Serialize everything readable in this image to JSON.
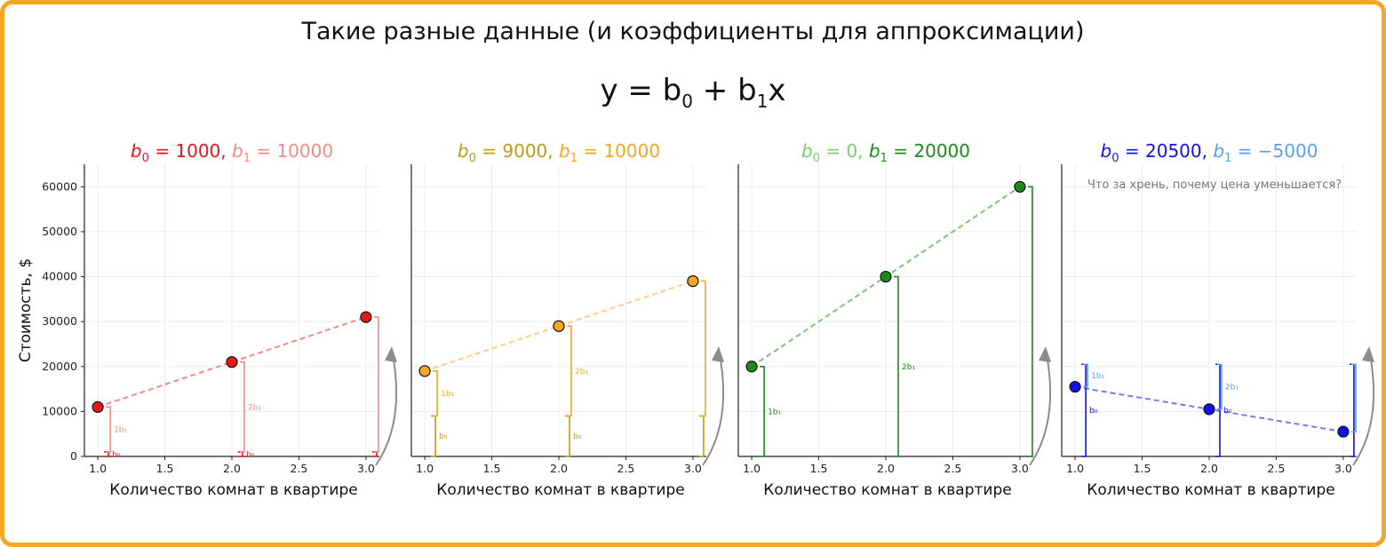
{
  "title": "Такие разные данные (и коэффициенты для аппроксимации)",
  "formula": {
    "lhs": "y = b",
    "sub0": "0",
    "mid": " + b",
    "sub1": "1",
    "rhs": "x"
  },
  "colors": {
    "frame": "#f5a623",
    "grid": "#ececec",
    "axis": "#222222",
    "arrow": "#8c8c8c"
  },
  "chart_data": [
    {
      "type": "scatter",
      "title_parts": [
        {
          "text": "b",
          "sub": "0",
          "after": " = 1000, ",
          "color": "#e8161b"
        },
        {
          "text": "b",
          "sub": "1",
          "after": " = 10000",
          "color": "#f28b8b"
        }
      ],
      "x": [
        1,
        2,
        3
      ],
      "y": [
        11000,
        21000,
        31000
      ],
      "b0": 1000,
      "b1": 10000,
      "point_color": "#e8161b",
      "line_color": "#f28b8b",
      "b0_color": "#e8161b",
      "b1_color": "#f28b8b",
      "xlabel": "Количество комнат в квартире",
      "ylabel": "Стоимость, $",
      "xticks": [
        "1.0",
        "1.5",
        "2.0",
        "2.5",
        "3.0"
      ],
      "yticks": [
        "0",
        "10000",
        "20000",
        "30000",
        "40000",
        "50000",
        "60000"
      ],
      "xlim": [
        0.9,
        3.1
      ],
      "ylim": [
        0,
        65000
      ],
      "bracket_labels": {
        "b0": "b₀",
        "b1_1": "1b₁",
        "b1_2": "2b₁"
      },
      "note": ""
    },
    {
      "type": "scatter",
      "title_parts": [
        {
          "text": "b",
          "sub": "0",
          "after": " = 9000, ",
          "color": "#c49a14"
        },
        {
          "text": "b",
          "sub": "1",
          "after": " = 10000",
          "color": "#f5a623"
        }
      ],
      "x": [
        1,
        2,
        3
      ],
      "y": [
        19000,
        29000,
        39000
      ],
      "b0": 9000,
      "b1": 10000,
      "point_color": "#f5a623",
      "line_color": "#f8cf86",
      "b0_color": "#c49a14",
      "b1_color": "#f5a623",
      "xlabel": "Количество комнат в квартире",
      "ylabel": "",
      "xticks": [
        "1.0",
        "1.5",
        "2.0",
        "2.5",
        "3.0"
      ],
      "yticks": [],
      "xlim": [
        0.9,
        3.1
      ],
      "ylim": [
        0,
        65000
      ],
      "bracket_labels": {
        "b0": "b₀",
        "b1_1": "1b₁",
        "b1_2": "2b₁"
      },
      "note": ""
    },
    {
      "type": "scatter",
      "title_parts": [
        {
          "text": "b",
          "sub": "0",
          "after": " = 0, ",
          "color": "#7ccd6a"
        },
        {
          "text": "b",
          "sub": "1",
          "after": " = 20000",
          "color": "#1a8a1a"
        }
      ],
      "x": [
        1,
        2,
        3
      ],
      "y": [
        20000,
        40000,
        60000
      ],
      "b0": 0,
      "b1": 20000,
      "point_color": "#1a8a1a",
      "line_color": "#7fc27a",
      "b0_color": "#7ccd6a",
      "b1_color": "#1a8a1a",
      "xlabel": "Количество комнат в квартире",
      "ylabel": "",
      "xticks": [
        "1.0",
        "1.5",
        "2.0",
        "2.5",
        "3.0"
      ],
      "yticks": [],
      "xlim": [
        0.9,
        3.1
      ],
      "ylim": [
        0,
        65000
      ],
      "bracket_labels": {
        "b0": "",
        "b1_1": "1b₁",
        "b1_2": "2b₁"
      },
      "note": ""
    },
    {
      "type": "scatter",
      "title_parts": [
        {
          "text": "b",
          "sub": "0",
          "after": " = 20500, ",
          "color": "#1212e6"
        },
        {
          "text": "b",
          "sub": "1",
          "after": " = −5000",
          "color": "#5aa0f0"
        }
      ],
      "x": [
        1,
        2,
        3
      ],
      "y": [
        15500,
        10500,
        5500
      ],
      "b0": 20500,
      "b1": -5000,
      "point_color": "#1212e6",
      "line_color": "#7a7af0",
      "b0_color": "#1212e6",
      "b1_color": "#5aa0f0",
      "xlabel": "Количество комнат в квартире",
      "ylabel": "",
      "xticks": [
        "1.0",
        "1.5",
        "2.0",
        "2.5",
        "3.0"
      ],
      "yticks": [],
      "xlim": [
        0.9,
        3.1
      ],
      "ylim": [
        0,
        65000
      ],
      "bracket_labels": {
        "b0": "b₀",
        "b1_1": "1b₁",
        "b1_2": "2b₁"
      },
      "note": "Что за хрень, почему цена уменьшается?"
    }
  ]
}
